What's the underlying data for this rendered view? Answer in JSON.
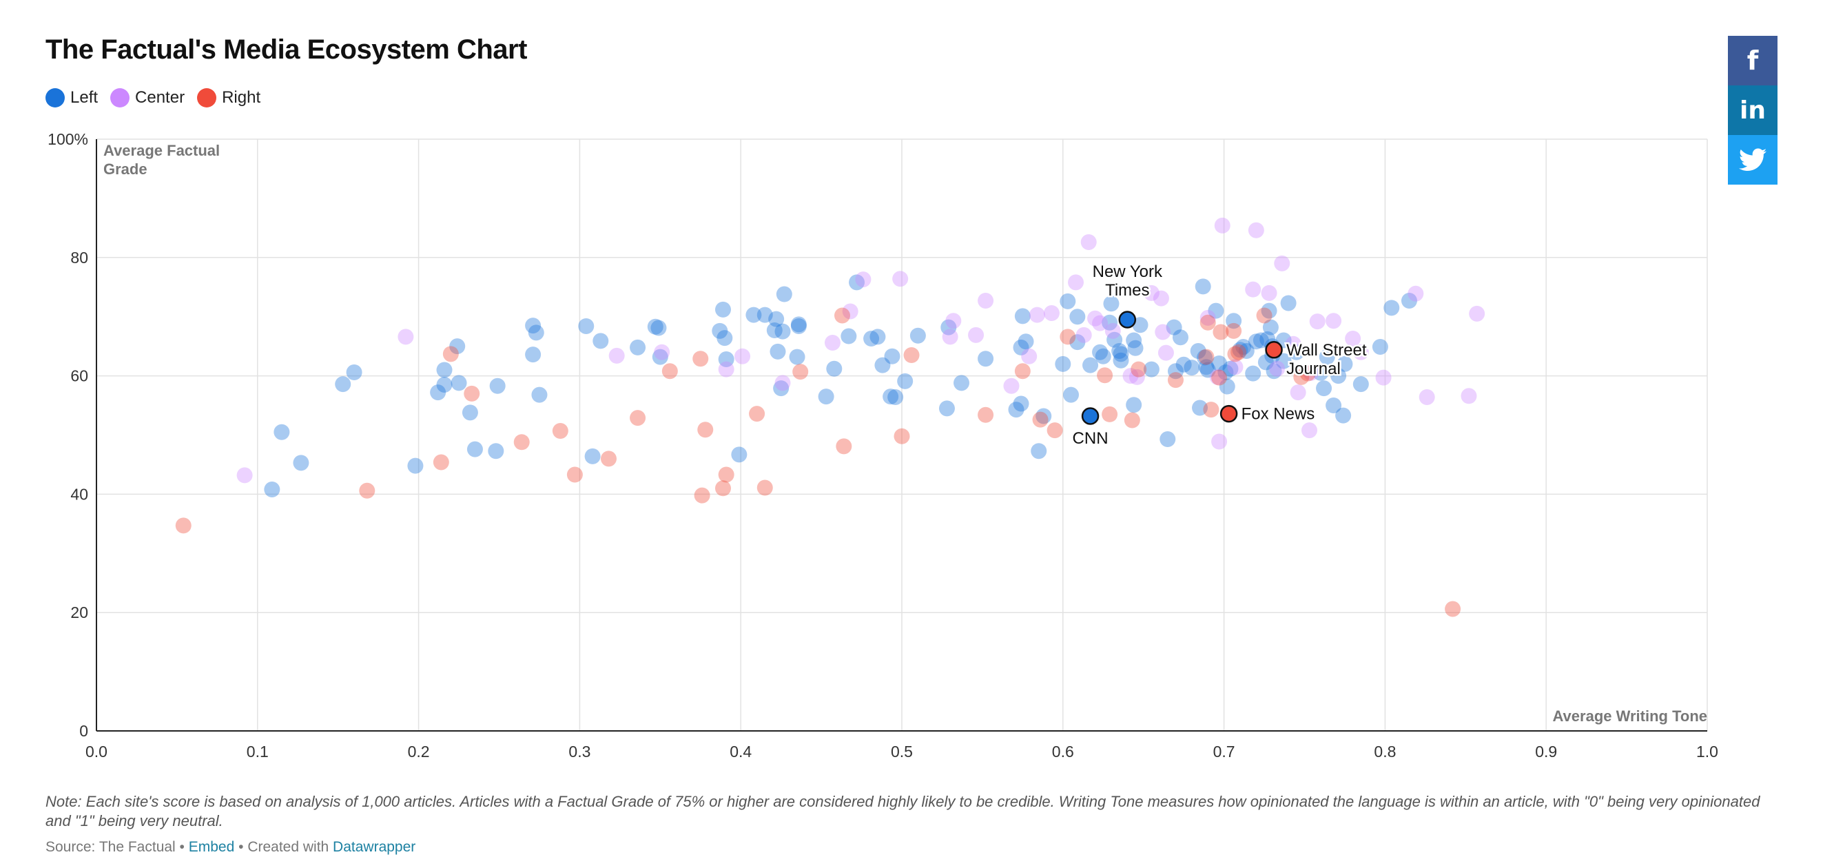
{
  "title": "The Factual's Media Ecosystem Chart",
  "legend": [
    {
      "label": "Left",
      "color": "#1a73d9"
    },
    {
      "label": "Center",
      "color": "#cc88ff"
    },
    {
      "label": "Right",
      "color": "#f04b3a"
    }
  ],
  "share": {
    "facebook_label": "f",
    "linkedin_label": "in",
    "twitter_icon": "twitter-bird-icon",
    "colors": {
      "facebook": "#3b5998",
      "linkedin": "#0e76a8",
      "twitter": "#1da1f2"
    }
  },
  "note": "Note: Each site's score is based on analysis of 1,000 articles. Articles with a Factual Grade of 75% or higher are considered highly likely to be credible. Writing Tone measures how opinionated the language is within an article, with \"0\" being very opinionated and \"1\" being very neutral.",
  "footer": {
    "source": "Source: The Factual",
    "sep1": " • ",
    "embed": "Embed",
    "sep2": " • Created with ",
    "datawrapper": "Datawrapper"
  },
  "chart_data": {
    "type": "scatter",
    "title": "The Factual's Media Ecosystem Chart",
    "xlabel": "Average Writing Tone",
    "ylabel": "Average Factual Grade",
    "xlim": [
      0.0,
      1.0
    ],
    "ylim": [
      0,
      100
    ],
    "x_ticks": [
      "0.0",
      "0.1",
      "0.2",
      "0.3",
      "0.4",
      "0.5",
      "0.6",
      "0.7",
      "0.8",
      "0.9",
      "1.0"
    ],
    "y_ticks": [
      "0",
      "20",
      "40",
      "60",
      "80",
      "100%"
    ],
    "grid": true,
    "legend_position": "top-left",
    "series": [
      {
        "name": "Left",
        "color": "#1a73d9",
        "points": [
          [
            0.109,
            40.8
          ],
          [
            0.115,
            50.5
          ],
          [
            0.127,
            45.3
          ],
          [
            0.153,
            58.6
          ],
          [
            0.16,
            60.6
          ],
          [
            0.198,
            44.8
          ],
          [
            0.212,
            57.2
          ],
          [
            0.216,
            61.0
          ],
          [
            0.216,
            58.5
          ],
          [
            0.224,
            65.0
          ],
          [
            0.225,
            58.8
          ],
          [
            0.232,
            53.8
          ],
          [
            0.235,
            47.6
          ],
          [
            0.248,
            47.3
          ],
          [
            0.249,
            58.3
          ],
          [
            0.271,
            68.5
          ],
          [
            0.271,
            63.6
          ],
          [
            0.273,
            67.3
          ],
          [
            0.275,
            56.8
          ],
          [
            0.304,
            68.4
          ],
          [
            0.308,
            46.4
          ],
          [
            0.313,
            65.9
          ],
          [
            0.336,
            64.8
          ],
          [
            0.347,
            68.3
          ],
          [
            0.349,
            68.1
          ],
          [
            0.35,
            63.2
          ],
          [
            0.387,
            67.6
          ],
          [
            0.389,
            71.2
          ],
          [
            0.39,
            66.4
          ],
          [
            0.391,
            62.8
          ],
          [
            0.399,
            46.7
          ],
          [
            0.408,
            70.3
          ],
          [
            0.415,
            70.3
          ],
          [
            0.421,
            67.7
          ],
          [
            0.422,
            69.6
          ],
          [
            0.423,
            64.1
          ],
          [
            0.425,
            57.9
          ],
          [
            0.426,
            67.5
          ],
          [
            0.427,
            73.8
          ],
          [
            0.435,
            63.2
          ],
          [
            0.436,
            68.4
          ],
          [
            0.436,
            68.7
          ],
          [
            0.453,
            56.5
          ],
          [
            0.458,
            61.2
          ],
          [
            0.467,
            66.7
          ],
          [
            0.472,
            75.8
          ],
          [
            0.481,
            66.3
          ],
          [
            0.485,
            66.6
          ],
          [
            0.488,
            61.8
          ],
          [
            0.493,
            56.5
          ],
          [
            0.494,
            63.3
          ],
          [
            0.496,
            56.4
          ],
          [
            0.502,
            59.1
          ],
          [
            0.51,
            66.8
          ],
          [
            0.528,
            54.5
          ],
          [
            0.529,
            68.2
          ],
          [
            0.537,
            58.8
          ],
          [
            0.552,
            62.9
          ],
          [
            0.571,
            54.3
          ],
          [
            0.574,
            55.3
          ],
          [
            0.574,
            64.8
          ],
          [
            0.575,
            70.1
          ],
          [
            0.577,
            65.8
          ],
          [
            0.585,
            47.3
          ],
          [
            0.588,
            53.2
          ],
          [
            0.6,
            62.0
          ],
          [
            0.603,
            72.6
          ],
          [
            0.605,
            56.8
          ],
          [
            0.609,
            70.0
          ],
          [
            0.609,
            65.7
          ],
          [
            0.617,
            61.8
          ],
          [
            0.623,
            64.0
          ],
          [
            0.625,
            63.3
          ],
          [
            0.629,
            69.0
          ],
          [
            0.63,
            72.2
          ],
          [
            0.632,
            66.1
          ],
          [
            0.635,
            64.2
          ],
          [
            0.636,
            63.7
          ],
          [
            0.636,
            62.6
          ],
          [
            0.644,
            55.1
          ],
          [
            0.644,
            66.0
          ],
          [
            0.645,
            64.7
          ],
          [
            0.648,
            68.6
          ],
          [
            0.655,
            61.1
          ],
          [
            0.665,
            49.3
          ],
          [
            0.669,
            68.2
          ],
          [
            0.67,
            60.8
          ],
          [
            0.673,
            66.5
          ],
          [
            0.675,
            61.9
          ],
          [
            0.68,
            61.4
          ],
          [
            0.684,
            64.2
          ],
          [
            0.685,
            54.6
          ],
          [
            0.687,
            75.1
          ],
          [
            0.688,
            63.1
          ],
          [
            0.689,
            61.5
          ],
          [
            0.69,
            61.0
          ],
          [
            0.695,
            71.0
          ],
          [
            0.697,
            62.1
          ],
          [
            0.701,
            60.6
          ],
          [
            0.702,
            58.2
          ],
          [
            0.704,
            61.2
          ],
          [
            0.706,
            69.3
          ],
          [
            0.71,
            64.4
          ],
          [
            0.712,
            64.9
          ],
          [
            0.714,
            64.2
          ],
          [
            0.718,
            60.4
          ],
          [
            0.72,
            65.8
          ],
          [
            0.723,
            66.0
          ],
          [
            0.726,
            62.3
          ],
          [
            0.727,
            66.2
          ],
          [
            0.728,
            71.0
          ],
          [
            0.729,
            68.2
          ],
          [
            0.73,
            65.0
          ],
          [
            0.73,
            63.4
          ],
          [
            0.731,
            60.8
          ],
          [
            0.737,
            66.0
          ],
          [
            0.74,
            72.3
          ],
          [
            0.745,
            64.0
          ],
          [
            0.76,
            60.5
          ],
          [
            0.762,
            57.9
          ],
          [
            0.764,
            63.2
          ],
          [
            0.768,
            55.0
          ],
          [
            0.771,
            60.0
          ],
          [
            0.774,
            53.3
          ],
          [
            0.785,
            58.6
          ],
          [
            0.797,
            64.9
          ],
          [
            0.804,
            71.5
          ],
          [
            0.815,
            72.7
          ],
          [
            0.775,
            62.0
          ],
          [
            0.737,
            62.5
          ]
        ]
      },
      {
        "name": "Center",
        "color": "#cc88ff",
        "points": [
          [
            0.092,
            43.2
          ],
          [
            0.192,
            66.6
          ],
          [
            0.323,
            63.4
          ],
          [
            0.351,
            64.0
          ],
          [
            0.391,
            61.1
          ],
          [
            0.401,
            63.3
          ],
          [
            0.426,
            58.8
          ],
          [
            0.457,
            65.6
          ],
          [
            0.468,
            70.9
          ],
          [
            0.476,
            76.3
          ],
          [
            0.499,
            76.4
          ],
          [
            0.53,
            66.6
          ],
          [
            0.532,
            69.3
          ],
          [
            0.546,
            66.9
          ],
          [
            0.552,
            72.7
          ],
          [
            0.568,
            58.3
          ],
          [
            0.579,
            63.3
          ],
          [
            0.584,
            70.3
          ],
          [
            0.593,
            70.6
          ],
          [
            0.608,
            75.8
          ],
          [
            0.613,
            66.9
          ],
          [
            0.616,
            82.6
          ],
          [
            0.62,
            69.7
          ],
          [
            0.623,
            68.9
          ],
          [
            0.631,
            67.6
          ],
          [
            0.642,
            60.0
          ],
          [
            0.646,
            59.8
          ],
          [
            0.655,
            74.0
          ],
          [
            0.661,
            73.1
          ],
          [
            0.662,
            67.4
          ],
          [
            0.664,
            63.9
          ],
          [
            0.69,
            69.8
          ],
          [
            0.696,
            59.8
          ],
          [
            0.697,
            48.9
          ],
          [
            0.699,
            85.4
          ],
          [
            0.707,
            61.5
          ],
          [
            0.718,
            74.6
          ],
          [
            0.72,
            84.6
          ],
          [
            0.728,
            74.0
          ],
          [
            0.733,
            61.2
          ],
          [
            0.736,
            79.0
          ],
          [
            0.743,
            65.4
          ],
          [
            0.746,
            57.2
          ],
          [
            0.753,
            50.8
          ],
          [
            0.758,
            69.2
          ],
          [
            0.768,
            69.3
          ],
          [
            0.78,
            66.3
          ],
          [
            0.785,
            64.0
          ],
          [
            0.799,
            59.7
          ],
          [
            0.819,
            73.9
          ],
          [
            0.826,
            56.4
          ],
          [
            0.852,
            56.6
          ],
          [
            0.857,
            70.5
          ],
          [
            0.754,
            60.5
          ]
        ]
      },
      {
        "name": "Right",
        "color": "#f04b3a",
        "points": [
          [
            0.054,
            34.7
          ],
          [
            0.168,
            40.6
          ],
          [
            0.214,
            45.4
          ],
          [
            0.22,
            63.7
          ],
          [
            0.233,
            57.0
          ],
          [
            0.264,
            48.8
          ],
          [
            0.288,
            50.7
          ],
          [
            0.297,
            43.3
          ],
          [
            0.318,
            46.0
          ],
          [
            0.336,
            52.9
          ],
          [
            0.356,
            60.8
          ],
          [
            0.375,
            62.9
          ],
          [
            0.376,
            39.8
          ],
          [
            0.378,
            50.9
          ],
          [
            0.389,
            41.0
          ],
          [
            0.391,
            43.3
          ],
          [
            0.41,
            53.6
          ],
          [
            0.415,
            41.1
          ],
          [
            0.437,
            60.7
          ],
          [
            0.463,
            70.2
          ],
          [
            0.464,
            48.1
          ],
          [
            0.5,
            49.8
          ],
          [
            0.506,
            63.5
          ],
          [
            0.552,
            53.4
          ],
          [
            0.575,
            60.8
          ],
          [
            0.586,
            52.6
          ],
          [
            0.595,
            50.8
          ],
          [
            0.603,
            66.6
          ],
          [
            0.626,
            60.1
          ],
          [
            0.629,
            53.5
          ],
          [
            0.643,
            52.5
          ],
          [
            0.647,
            61.1
          ],
          [
            0.67,
            59.3
          ],
          [
            0.689,
            63.2
          ],
          [
            0.69,
            69.0
          ],
          [
            0.692,
            54.3
          ],
          [
            0.697,
            59.7
          ],
          [
            0.698,
            67.4
          ],
          [
            0.706,
            67.6
          ],
          [
            0.707,
            63.7
          ],
          [
            0.709,
            64.0
          ],
          [
            0.725,
            70.2
          ],
          [
            0.748,
            59.8
          ],
          [
            0.752,
            60.4
          ],
          [
            0.842,
            20.6
          ]
        ]
      }
    ],
    "highlighted": [
      {
        "label": "New York Times",
        "series": "Left",
        "x": 0.64,
        "y": 69.5
      },
      {
        "label": "Wall Street Journal",
        "series": "Right",
        "x": 0.731,
        "y": 64.4
      },
      {
        "label": "Fox News",
        "series": "Right",
        "x": 0.703,
        "y": 53.6
      },
      {
        "label": "CNN",
        "series": "Left",
        "x": 0.617,
        "y": 53.2
      }
    ]
  }
}
